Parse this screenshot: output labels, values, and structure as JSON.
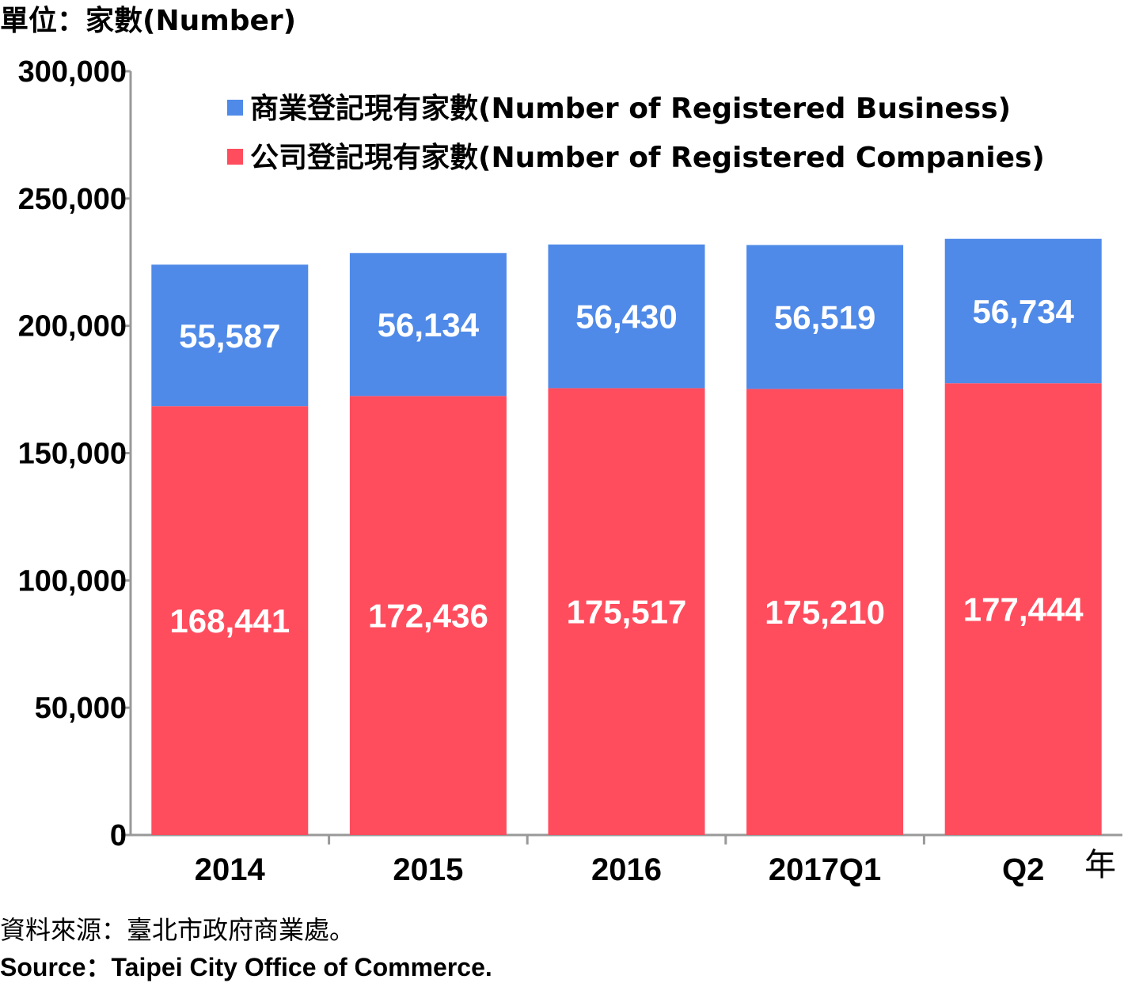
{
  "chart_data": {
    "type": "bar",
    "stacked": true,
    "unit_label": "單位：家數(Number)",
    "categories": [
      "2014",
      "2015",
      "2016",
      "2017Q1",
      "Q2"
    ],
    "x_suffix": "年",
    "ylim": [
      0,
      300000
    ],
    "yticks": [
      0,
      50000,
      100000,
      150000,
      200000,
      250000,
      300000
    ],
    "ytick_labels": [
      "0",
      "50,000",
      "100,000",
      "150,000",
      "200,000",
      "250,000",
      "300,000"
    ],
    "series": [
      {
        "name": "公司登記現有家數(Number of Registered Companies)",
        "color": "#ff4d5e",
        "values": [
          168441,
          172436,
          175517,
          175210,
          177444
        ],
        "labels": [
          "168,441",
          "172,436",
          "175,517",
          "175,210",
          "177,444"
        ]
      },
      {
        "name": "商業登記現有家數(Number of Registered Business)",
        "color": "#4f8ae8",
        "values": [
          55587,
          56134,
          56430,
          56519,
          56734
        ],
        "labels": [
          "55,587",
          "56,134",
          "56,430",
          "56,519",
          "56,734"
        ]
      }
    ],
    "legend": {
      "placement": "top",
      "entries": [
        "商業登記現有家數(Number of Registered Business)",
        "公司登記現有家數(Number of Registered Companies)"
      ]
    },
    "grid": false
  },
  "source": {
    "zh": "資料來源：臺北市政府商業處。",
    "en": "Source：Taipei City Office of Commerce."
  }
}
